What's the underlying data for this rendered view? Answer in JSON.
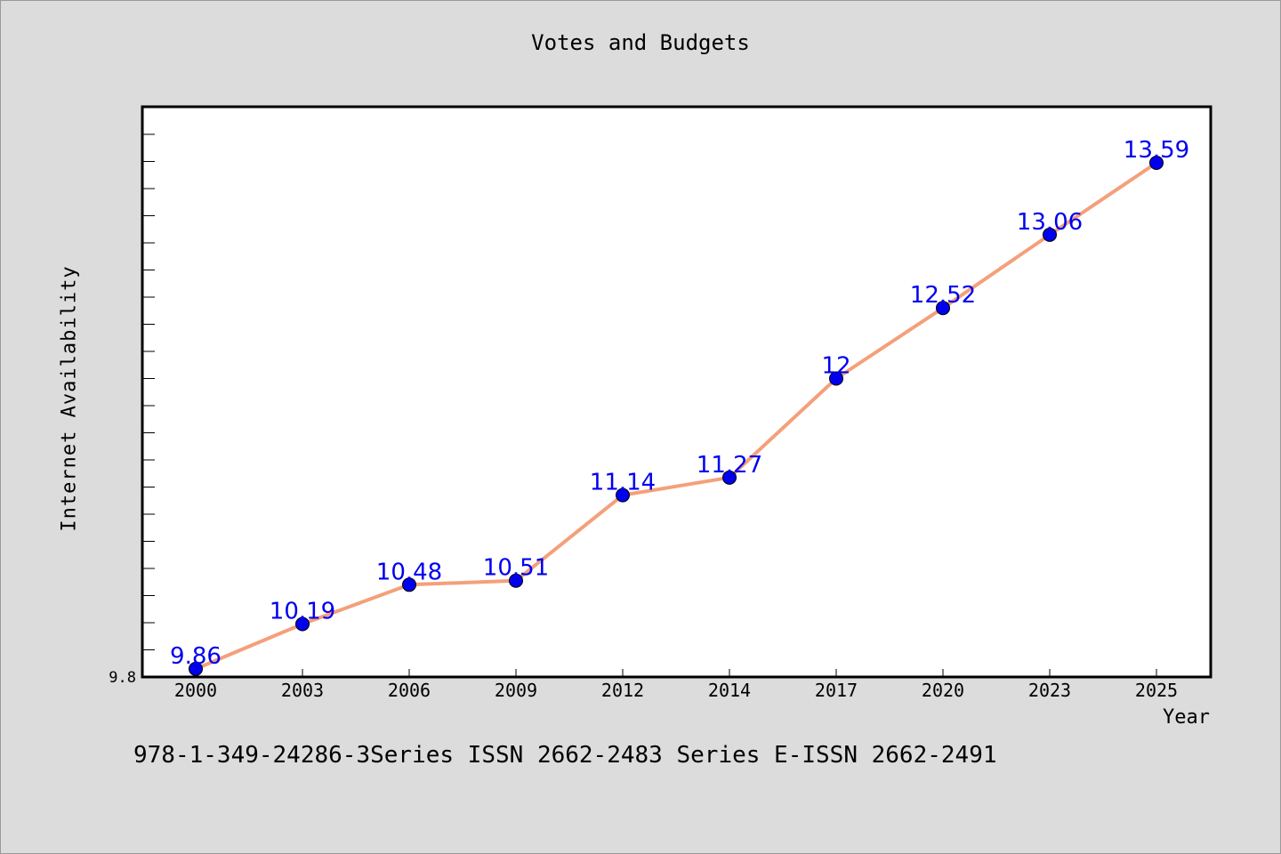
{
  "chart_data": {
    "type": "line",
    "title": "Votes and Budgets",
    "xlabel": "Year",
    "ylabel": "Internet Availability",
    "categories": [
      "2000",
      "2003",
      "2006",
      "2009",
      "2012",
      "2014",
      "2017",
      "2020",
      "2023",
      "2025"
    ],
    "series": [
      {
        "values": [
          9.86,
          10.19,
          10.48,
          10.51,
          11.14,
          11.27,
          12,
          12.52,
          13.06,
          13.59
        ],
        "data_labels": [
          "9.86",
          "10.19",
          "10.48",
          "10.51",
          "11.14",
          "11.27",
          "12",
          "12.52",
          "13.06",
          "13.59"
        ],
        "line_color": "#f4a07a",
        "marker_color": "#0000ee"
      }
    ],
    "ytick_labels": [
      "9.8"
    ],
    "ylim": [
      9.8,
      14.0
    ],
    "grid": false,
    "label_color": "#0000ee"
  },
  "footnote": "978-1-349-24286-3Series ISSN 2662-2483 Series E-ISSN 2662-2491"
}
